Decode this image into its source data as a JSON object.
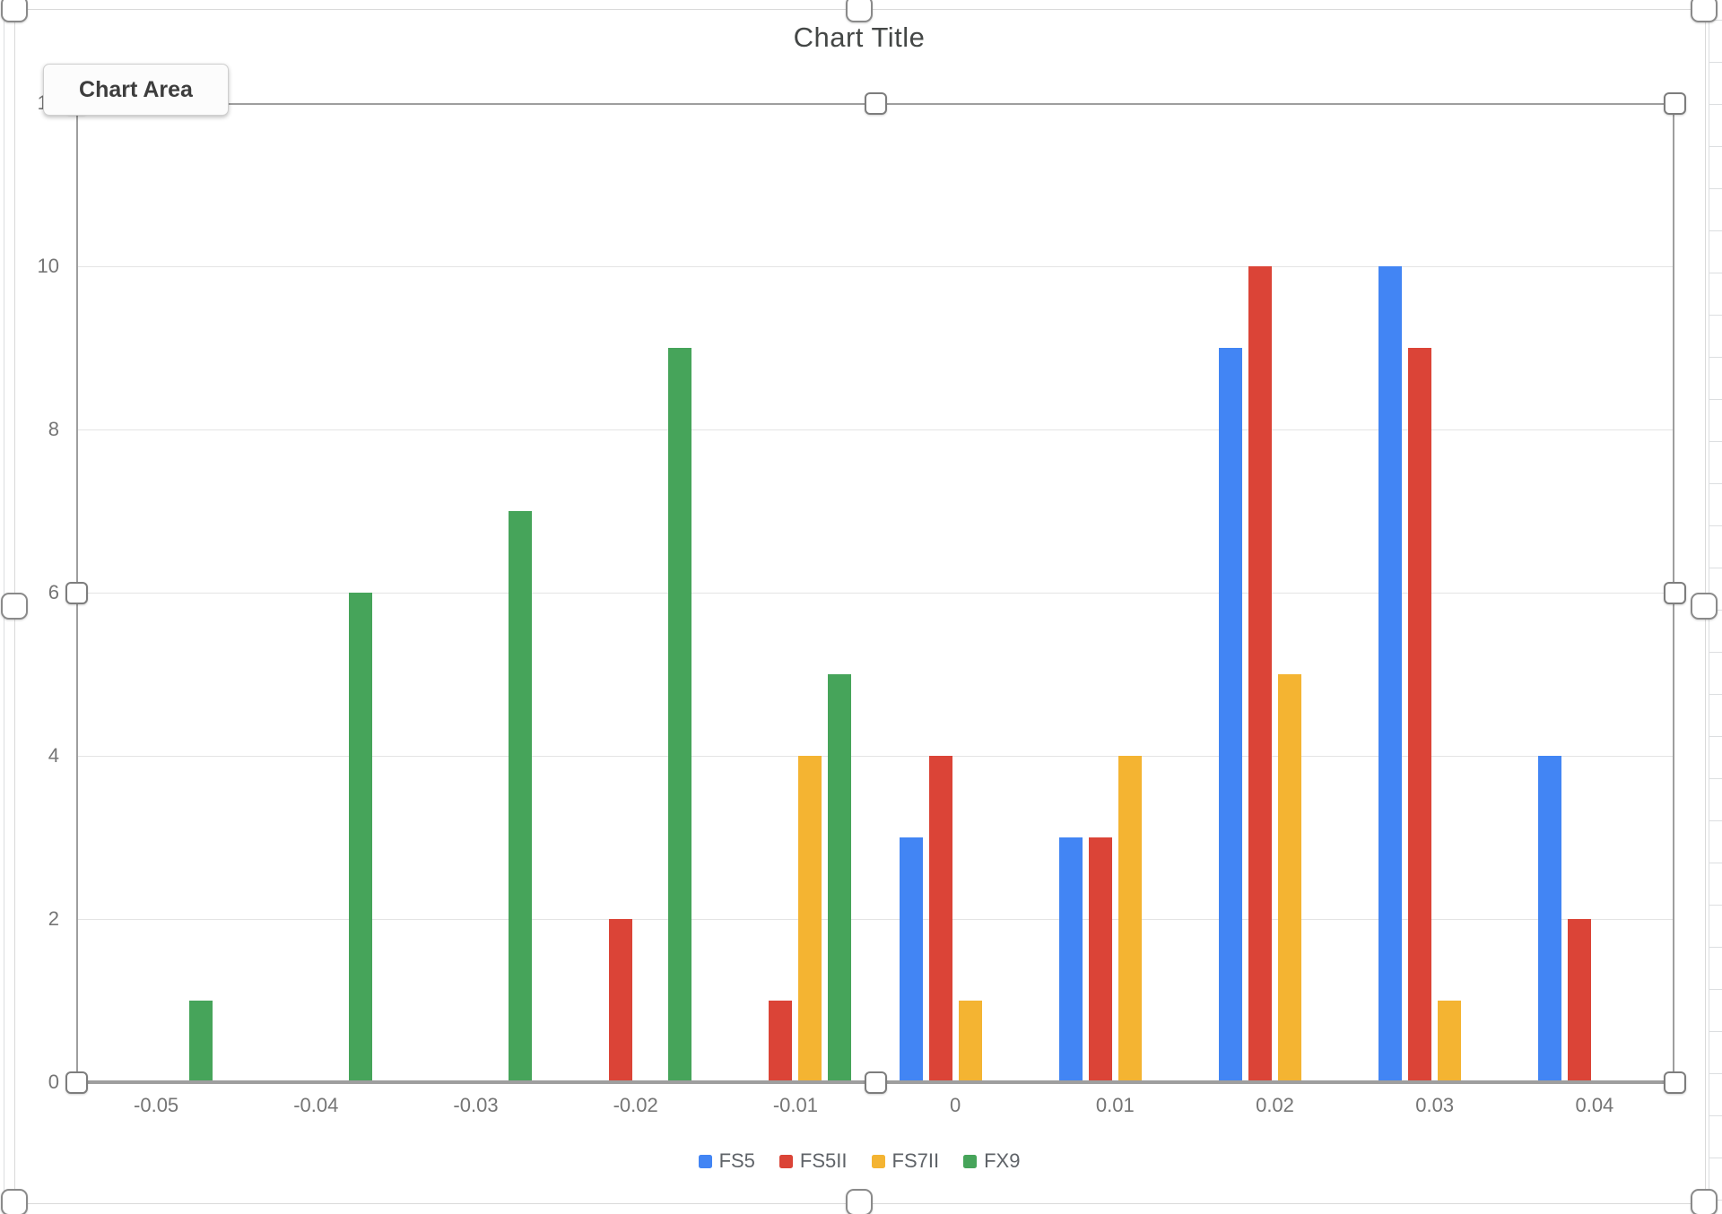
{
  "chart_data": {
    "type": "bar",
    "title": "Chart Title",
    "categories": [
      "-0.05",
      "-0.04",
      "-0.03",
      "-0.02",
      "-0.01",
      "0",
      "0.01",
      "0.02",
      "0.03",
      "0.04"
    ],
    "series": [
      {
        "name": "FS5",
        "color": "#4285F4",
        "values": [
          0,
          0,
          0,
          0,
          0,
          3,
          3,
          9,
          10,
          4
        ]
      },
      {
        "name": "FS5II",
        "color": "#DB4437",
        "values": [
          0,
          0,
          0,
          2,
          1,
          4,
          3,
          10,
          9,
          2
        ]
      },
      {
        "name": "FS7II",
        "color": "#F4B432",
        "values": [
          0,
          0,
          0,
          0,
          4,
          1,
          4,
          5,
          1,
          0
        ]
      },
      {
        "name": "FX9",
        "color": "#46A45A",
        "values": [
          1,
          6,
          7,
          9,
          5,
          0,
          0,
          0,
          0,
          0
        ]
      }
    ],
    "xlabel": "",
    "ylabel": "",
    "ylim": [
      0,
      12
    ],
    "yticks": [
      0,
      2,
      4,
      6,
      8,
      10,
      12
    ],
    "grid": true,
    "legend_position": "bottom"
  },
  "tooltip": {
    "label": "Chart Area"
  },
  "colors": {
    "axis_line": "#9e9e9e",
    "gridline": "#e4e4e4",
    "tick_text": "#757575",
    "title_text": "#444746",
    "selection_border": "#9e9e9e",
    "frame_border": "#d9d9d9",
    "legend_text": "#5f6368",
    "handle_fill": "#ffffff",
    "handle_border": "#7d7d7d"
  }
}
